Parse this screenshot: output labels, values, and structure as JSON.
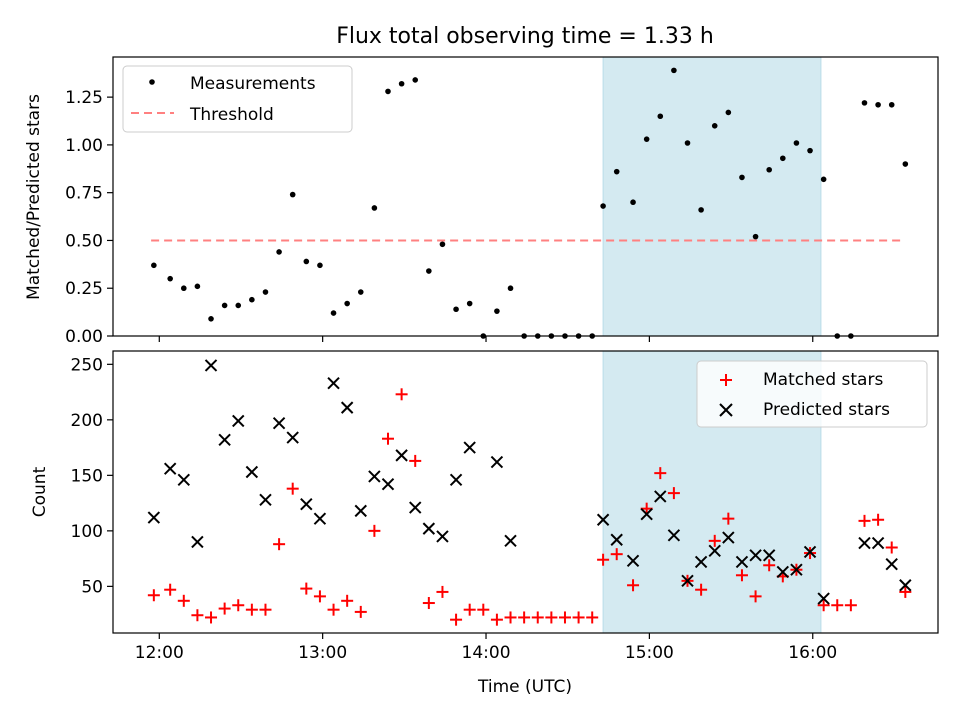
{
  "chart_data": [
    {
      "type": "scatter",
      "title": "Flux total observing time = 1.33 h",
      "ylabel": "Matched/Predicted stars",
      "xlim": [
        "11:43",
        "16:46"
      ],
      "ylim": [
        0,
        1.46
      ],
      "yticks": [
        "0.00",
        "0.25",
        "0.50",
        "0.75",
        "1.00",
        "1.25"
      ],
      "highlight_span": {
        "from": "14:43",
        "to": "16:03",
        "color": "#d4eaf1"
      },
      "legend": {
        "position": "upper-left",
        "entries": [
          "Measurements",
          "Threshold"
        ]
      },
      "threshold": {
        "name": "Threshold",
        "value": 0.5,
        "from": "11:57",
        "to": "16:33",
        "color": "#ff8080"
      },
      "series": [
        {
          "name": "Measurements",
          "color": "#000000",
          "points": [
            [
              "11:58",
              0.37
            ],
            [
              "12:04",
              0.3
            ],
            [
              "12:09",
              0.25
            ],
            [
              "12:14",
              0.26
            ],
            [
              "12:19",
              0.09
            ],
            [
              "12:24",
              0.16
            ],
            [
              "12:29",
              0.16
            ],
            [
              "12:34",
              0.19
            ],
            [
              "12:39",
              0.23
            ],
            [
              "12:44",
              0.44
            ],
            [
              "12:49",
              0.74
            ],
            [
              "12:54",
              0.39
            ],
            [
              "12:59",
              0.37
            ],
            [
              "13:04",
              0.12
            ],
            [
              "13:09",
              0.17
            ],
            [
              "13:14",
              0.23
            ],
            [
              "13:19",
              0.67
            ],
            [
              "13:24",
              1.28
            ],
            [
              "13:29",
              1.32
            ],
            [
              "13:34",
              1.34
            ],
            [
              "13:39",
              0.34
            ],
            [
              "13:44",
              0.48
            ],
            [
              "13:49",
              0.14
            ],
            [
              "13:54",
              0.17
            ],
            [
              "13:59",
              0.0
            ],
            [
              "14:04",
              0.13
            ],
            [
              "14:09",
              0.25
            ],
            [
              "14:14",
              0.0
            ],
            [
              "14:19",
              0.0
            ],
            [
              "14:24",
              0.0
            ],
            [
              "14:29",
              0.0
            ],
            [
              "14:34",
              0.0
            ],
            [
              "14:39",
              0.0
            ],
            [
              "14:43",
              0.68
            ],
            [
              "14:48",
              0.86
            ],
            [
              "14:54",
              0.7
            ],
            [
              "14:59",
              1.03
            ],
            [
              "15:04",
              1.15
            ],
            [
              "15:09",
              1.39
            ],
            [
              "15:14",
              1.01
            ],
            [
              "15:19",
              0.66
            ],
            [
              "15:24",
              1.1
            ],
            [
              "15:29",
              1.17
            ],
            [
              "15:34",
              0.83
            ],
            [
              "15:39",
              0.52
            ],
            [
              "15:44",
              0.87
            ],
            [
              "15:49",
              0.93
            ],
            [
              "15:54",
              1.01
            ],
            [
              "15:59",
              0.97
            ],
            [
              "16:04",
              0.82
            ],
            [
              "16:09",
              0.0
            ],
            [
              "16:14",
              0.0
            ],
            [
              "16:19",
              1.22
            ],
            [
              "16:24",
              1.21
            ],
            [
              "16:29",
              1.21
            ],
            [
              "16:34",
              0.9
            ]
          ]
        }
      ]
    },
    {
      "type": "scatter",
      "title": "",
      "xlabel": "Time (UTC)",
      "ylabel": "Count",
      "xlim": [
        "11:43",
        "16:46"
      ],
      "ylim": [
        8,
        262
      ],
      "yticks": [
        "50",
        "100",
        "150",
        "200",
        "250"
      ],
      "xticks": [
        "12:00",
        "13:00",
        "14:00",
        "15:00",
        "16:00"
      ],
      "highlight_span": {
        "from": "14:43",
        "to": "16:03",
        "color": "#d4eaf1"
      },
      "legend": {
        "position": "upper-right",
        "entries": [
          "Matched stars",
          "Predicted stars"
        ]
      },
      "series": [
        {
          "name": "Matched stars",
          "marker": "+",
          "color": "#ff0000",
          "points": [
            [
              "11:58",
              42
            ],
            [
              "12:04",
              47
            ],
            [
              "12:09",
              37
            ],
            [
              "12:14",
              24
            ],
            [
              "12:19",
              22
            ],
            [
              "12:24",
              30
            ],
            [
              "12:29",
              33
            ],
            [
              "12:34",
              29
            ],
            [
              "12:39",
              29
            ],
            [
              "12:44",
              88
            ],
            [
              "12:49",
              138
            ],
            [
              "12:54",
              48
            ],
            [
              "12:59",
              41
            ],
            [
              "13:04",
              29
            ],
            [
              "13:09",
              37
            ],
            [
              "13:14",
              27
            ],
            [
              "13:19",
              100
            ],
            [
              "13:24",
              183
            ],
            [
              "13:29",
              223
            ],
            [
              "13:34",
              163
            ],
            [
              "13:39",
              35
            ],
            [
              "13:44",
              45
            ],
            [
              "13:49",
              20
            ],
            [
              "13:54",
              29
            ],
            [
              "13:59",
              29
            ],
            [
              "14:04",
              20
            ],
            [
              "14:09",
              22
            ],
            [
              "14:14",
              22
            ],
            [
              "14:19",
              22
            ],
            [
              "14:24",
              22
            ],
            [
              "14:29",
              22
            ],
            [
              "14:34",
              22
            ],
            [
              "14:39",
              22
            ],
            [
              "14:43",
              74
            ],
            [
              "14:48",
              79
            ],
            [
              "14:54",
              51
            ],
            [
              "14:59",
              120
            ],
            [
              "15:04",
              152
            ],
            [
              "15:09",
              134
            ],
            [
              "15:14",
              55
            ],
            [
              "15:19",
              47
            ],
            [
              "15:24",
              91
            ],
            [
              "15:29",
              111
            ],
            [
              "15:34",
              60
            ],
            [
              "15:39",
              41
            ],
            [
              "15:44",
              69
            ],
            [
              "15:49",
              59
            ],
            [
              "15:54",
              65
            ],
            [
              "15:59",
              80
            ],
            [
              "16:04",
              33
            ],
            [
              "16:09",
              33
            ],
            [
              "16:14",
              33
            ],
            [
              "16:19",
              109
            ],
            [
              "16:24",
              110
            ],
            [
              "16:29",
              85
            ],
            [
              "16:34",
              45
            ]
          ]
        },
        {
          "name": "Predicted stars",
          "marker": "x",
          "color": "#000000",
          "points": [
            [
              "11:58",
              112
            ],
            [
              "12:04",
              156
            ],
            [
              "12:09",
              146
            ],
            [
              "12:14",
              90
            ],
            [
              "12:19",
              249
            ],
            [
              "12:24",
              182
            ],
            [
              "12:29",
              199
            ],
            [
              "12:34",
              153
            ],
            [
              "12:39",
              128
            ],
            [
              "12:44",
              197
            ],
            [
              "12:49",
              184
            ],
            [
              "12:54",
              124
            ],
            [
              "12:59",
              111
            ],
            [
              "13:04",
              233
            ],
            [
              "13:09",
              211
            ],
            [
              "13:14",
              118
            ],
            [
              "13:19",
              149
            ],
            [
              "13:24",
              142
            ],
            [
              "13:29",
              168
            ],
            [
              "13:34",
              121
            ],
            [
              "13:39",
              102
            ],
            [
              "13:44",
              95
            ],
            [
              "13:49",
              146
            ],
            [
              "13:54",
              175
            ],
            [
              "14:04",
              162
            ],
            [
              "14:09",
              91
            ],
            [
              "14:43",
              110
            ],
            [
              "14:48",
              92
            ],
            [
              "14:54",
              73
            ],
            [
              "14:59",
              115
            ],
            [
              "15:04",
              131
            ],
            [
              "15:09",
              96
            ],
            [
              "15:14",
              55
            ],
            [
              "15:19",
              72
            ],
            [
              "15:24",
              82
            ],
            [
              "15:29",
              94
            ],
            [
              "15:34",
              72
            ],
            [
              "15:39",
              78
            ],
            [
              "15:44",
              78
            ],
            [
              "15:49",
              63
            ],
            [
              "15:54",
              65
            ],
            [
              "15:59",
              81
            ],
            [
              "16:04",
              39
            ],
            [
              "16:19",
              89
            ],
            [
              "16:24",
              89
            ],
            [
              "16:29",
              70
            ],
            [
              "16:34",
              51
            ]
          ]
        }
      ]
    }
  ]
}
